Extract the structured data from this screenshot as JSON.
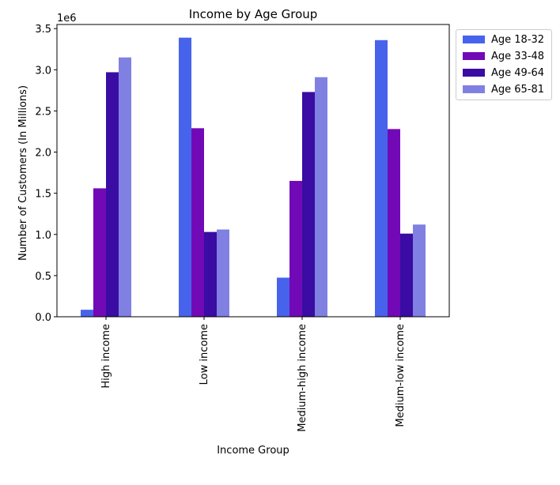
{
  "chart_data": {
    "type": "bar",
    "title": "Income by Age Group",
    "xlabel": "Income Group",
    "ylabel": "Number of Customers (In Millions)",
    "offset_label": "1e6",
    "categories": [
      "High income",
      "Low income",
      "Medium-high income",
      "Medium-low income"
    ],
    "series": [
      {
        "name": "Age 18-32",
        "color": "#4763ec",
        "values": [
          85000,
          3390000,
          475000,
          3360000
        ]
      },
      {
        "name": "Age 33-48",
        "color": "#7209b7",
        "values": [
          1560000,
          2290000,
          1650000,
          2280000
        ]
      },
      {
        "name": "Age 49-64",
        "color": "#3a0ca3",
        "values": [
          2970000,
          1030000,
          2730000,
          1010000
        ]
      },
      {
        "name": "Age 65-81",
        "color": "#8080e2",
        "values": [
          3150000,
          1060000,
          2910000,
          1120000
        ]
      }
    ],
    "ylim": [
      0,
      3550000
    ],
    "yticks": [
      0,
      500000,
      1000000,
      1500000,
      2000000,
      2500000,
      3000000,
      3500000
    ],
    "ytick_labels": [
      "0.0",
      "0.5",
      "1.0",
      "1.5",
      "2.0",
      "2.5",
      "3.0",
      "3.5"
    ],
    "grid": false,
    "legend_position": "outside-top-right"
  }
}
